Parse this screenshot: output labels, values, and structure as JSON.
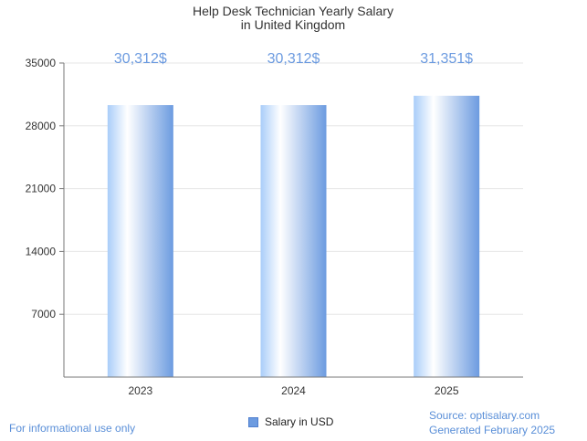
{
  "chart_data": {
    "type": "bar",
    "title_lines": [
      "Help Desk Technician Yearly Salary",
      "in United Kingdom"
    ],
    "categories": [
      "2023",
      "2024",
      "2025"
    ],
    "series": [
      {
        "name": "Salary in USD",
        "values": [
          30312,
          30312,
          31351
        ]
      }
    ],
    "data_labels": [
      "30,312$",
      "30,312$",
      "31,351$"
    ],
    "y_ticks": [
      "7000",
      "14000",
      "21000",
      "28000",
      "35000"
    ],
    "ylim": [
      0,
      35000
    ],
    "grid": true,
    "legend_position": "bottom-center",
    "colors": {
      "bar_light": "#ffffff",
      "bar_mid": "#b9d6fb",
      "bar_dark": "#6c9be0",
      "label": "#6c9be0"
    }
  },
  "footer": {
    "left": "For informational use only",
    "source": "Source: optisalary.com",
    "generated": "Generated February 2025"
  }
}
